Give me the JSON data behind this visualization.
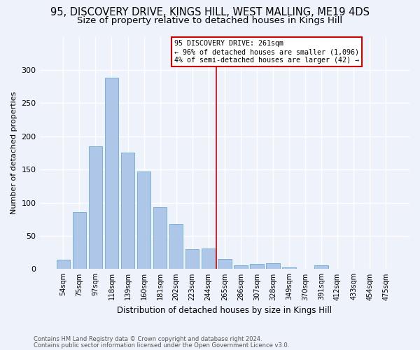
{
  "title_line1": "95, DISCOVERY DRIVE, KINGS HILL, WEST MALLING, ME19 4DS",
  "title_line2": "Size of property relative to detached houses in Kings Hill",
  "xlabel": "Distribution of detached houses by size in Kings Hill",
  "ylabel": "Number of detached properties",
  "bar_labels": [
    "54sqm",
    "75sqm",
    "97sqm",
    "118sqm",
    "139sqm",
    "160sqm",
    "181sqm",
    "202sqm",
    "223sqm",
    "244sqm",
    "265sqm",
    "286sqm",
    "307sqm",
    "328sqm",
    "349sqm",
    "370sqm",
    "391sqm",
    "412sqm",
    "433sqm",
    "454sqm",
    "475sqm"
  ],
  "bar_values": [
    14,
    86,
    185,
    288,
    175,
    147,
    93,
    68,
    30,
    31,
    15,
    6,
    8,
    9,
    3,
    0,
    6,
    0,
    0,
    0,
    0
  ],
  "bar_color": "#aec6e8",
  "bar_edge_color": "#6aaad4",
  "reference_line_x": 9.5,
  "annotation_title": "95 DISCOVERY DRIVE: 261sqm",
  "annotation_line1": "← 96% of detached houses are smaller (1,096)",
  "annotation_line2": "4% of semi-detached houses are larger (42) →",
  "annotation_box_color": "#ffffff",
  "annotation_box_edge_color": "#cc0000",
  "ref_line_color": "#cc0000",
  "footer_line1": "Contains HM Land Registry data © Crown copyright and database right 2024.",
  "footer_line2": "Contains public sector information licensed under the Open Government Licence v3.0.",
  "ylim": [
    0,
    350
  ],
  "yticks": [
    0,
    50,
    100,
    150,
    200,
    250,
    300
  ],
  "background_color": "#eef2fa",
  "grid_color": "#ffffff",
  "title_fontsize": 10.5,
  "subtitle_fontsize": 9.5
}
